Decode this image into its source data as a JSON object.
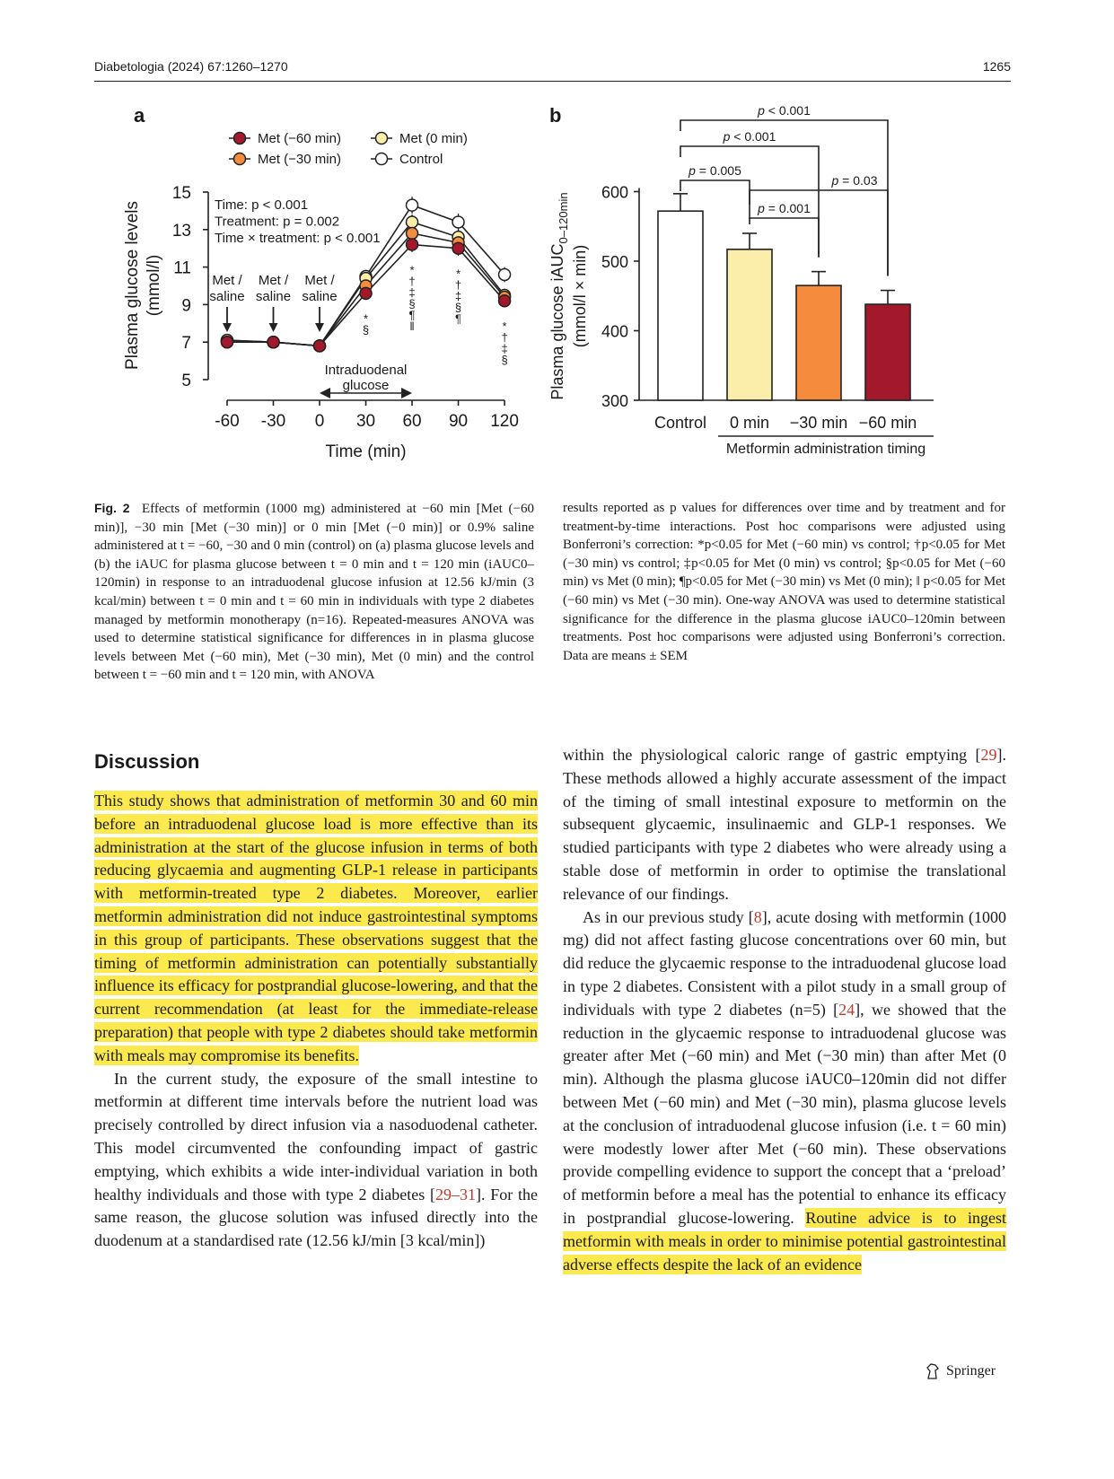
{
  "header": {
    "journal_ref": "Diabetologia (2024) 67:1260–1270",
    "page_number": "1265"
  },
  "figure": {
    "panel_a_label": "a",
    "panel_b_label": "b",
    "caption_label": "Fig. 2",
    "caption_left": "Effects of metformin (1000 mg) administered at −60 min [Met (−60 min)], −30 min [Met (−30 min)] or 0 min [Met (−0 min)] or 0.9% saline administered at t = −60, −30 and 0 min (control) on (a) plasma glucose levels and (b) the iAUC for plasma glucose between t = 0 min and t = 120 min (iAUC0–120min) in response to an intraduodenal glucose infusion at 12.56 kJ/min (3 kcal/min) between t = 0 min and t = 60 min in individuals with type 2 diabetes managed by metformin monotherapy (n=16). Repeated-measures ANOVA was used to determine statistical significance for differences in in plasma glucose levels between Met (−60 min), Met (−30 min), Met (0 min) and the control between t = −60 min and t = 120 min, with ANOVA",
    "caption_right": "results reported as p values for differences over time and by treatment and for treatment-by-time interactions. Post hoc comparisons were adjusted using Bonferroni’s correction: *p<0.05 for Met (−60 min) vs control; †p<0.05 for Met (−30 min) vs control; ‡p<0.05 for Met (0 min) vs control; §p<0.05 for Met (−60 min) vs Met (0 min); ¶p<0.05 for Met (−30 min) vs Met (0 min); ‖ p<0.05 for Met (−60 min) vs Met (−30 min). One-way ANOVA was used to determine statistical significance for the difference in the plasma glucose iAUC0–120min between treatments. Post hoc comparisons were adjusted using Bonferroni’s correction. Data are means ± SEM"
  },
  "chart_data": [
    {
      "type": "line",
      "panel": "a",
      "xlabel": "Time (min)",
      "ylabel": "Plasma glucose levels (mmol/l)",
      "x": [
        -60,
        -30,
        0,
        30,
        60,
        90,
        120
      ],
      "xticks": [
        "-60",
        "-30",
        "0",
        "30",
        "60",
        "90",
        "120"
      ],
      "yticks": [
        "5",
        "7",
        "9",
        "11",
        "13",
        "15"
      ],
      "ylim": [
        5,
        15
      ],
      "series": [
        {
          "name": "Met (−60 min)",
          "color": "#a3192b",
          "values": [
            7.0,
            7.0,
            6.8,
            9.6,
            12.2,
            12.0,
            9.2
          ],
          "sem": [
            0.25,
            0.2,
            0.2,
            0.35,
            0.4,
            0.4,
            0.35
          ]
        },
        {
          "name": "Met (−30 min)",
          "color": "#f58b3c",
          "values": [
            7.0,
            7.0,
            6.8,
            10.0,
            12.8,
            12.3,
            9.4
          ],
          "sem": [
            0.25,
            0.2,
            0.2,
            0.35,
            0.4,
            0.4,
            0.35
          ]
        },
        {
          "name": "Met (0 min)",
          "color": "#fbeeaa",
          "values": [
            7.1,
            7.0,
            6.8,
            10.4,
            13.4,
            12.6,
            9.5
          ],
          "sem": [
            0.25,
            0.2,
            0.2,
            0.35,
            0.4,
            0.4,
            0.35
          ]
        },
        {
          "name": "Control",
          "color": "#ffffff",
          "values": [
            7.1,
            7.0,
            6.8,
            10.5,
            14.3,
            13.4,
            10.6
          ],
          "sem": [
            0.25,
            0.2,
            0.2,
            0.35,
            0.45,
            0.45,
            0.4
          ]
        }
      ],
      "stats": [
        "Time: p < 0.001",
        "Treatment: p = 0.002",
        "Time × treatment: p < 0.001"
      ],
      "dosing_labels": [
        {
          "x": -60,
          "line1": "Met /",
          "line2": "saline"
        },
        {
          "x": -30,
          "line1": "Met /",
          "line2": "saline"
        },
        {
          "x": 0,
          "line1": "Met /",
          "line2": "saline"
        }
      ],
      "infusion_label": [
        "Intraduodenal",
        "glucose"
      ],
      "significance_marks": [
        {
          "x": 30,
          "marks": [
            "*",
            "§"
          ]
        },
        {
          "x": 60,
          "marks": [
            "*",
            "†",
            "‡",
            "§",
            "¶",
            "‖"
          ]
        },
        {
          "x": 90,
          "marks": [
            "*",
            "†",
            "‡",
            "§",
            "¶"
          ]
        },
        {
          "x": 120,
          "marks": [
            "*",
            "†",
            "‡",
            "§"
          ]
        }
      ]
    },
    {
      "type": "bar",
      "panel": "b",
      "ylabel": "Plasma glucose iAUC0–120min (mmol/l × min)",
      "categories": [
        "Control",
        "0 min",
        "−30 min",
        "−60 min"
      ],
      "values": [
        572,
        517,
        465,
        438
      ],
      "sem": [
        25,
        23,
        20,
        20
      ],
      "colors": [
        "#ffffff",
        "#fbeeaa",
        "#f58b3c",
        "#a3192b"
      ],
      "ylim": [
        300,
        600
      ],
      "yticks": [
        "300",
        "400",
        "500",
        "600"
      ],
      "group_label": "Metformin administration timing",
      "comparisons": [
        {
          "from": 0,
          "to": 3,
          "label": "p < 0.001"
        },
        {
          "from": 0,
          "to": 2,
          "label": "p < 0.001"
        },
        {
          "from": 0,
          "to": 1,
          "label": "p = 0.005"
        },
        {
          "from": 1,
          "to": 3,
          "label": "p = 0.03"
        },
        {
          "from": 1,
          "to": 2,
          "label": "p = 0.001"
        }
      ]
    }
  ],
  "discussion": {
    "heading": "Discussion",
    "left_p1": "This study shows that administration of metformin 30 and 60 min before an intraduodenal glucose load is more effective than its administration at the start of the glucose infusion in terms of both reducing glycaemia and augmenting GLP-1 release in participants with metformin-treated type 2 diabetes. Moreover, earlier metformin administration did not induce gastrointestinal symptoms in this group of participants. These observations suggest that the timing of metformin administration can potentially substantially influence its efficacy for postprandial glucose-lowering, and that the current recommendation (at least for the immediate-release preparation) that people with type 2 diabetes should take metformin with meals may compromise its benefits.",
    "left_p2_a": "In the current study, the exposure of the small intestine to metformin at different time intervals before the nutrient load was precisely controlled by direct infusion via a nasoduodenal catheter. This model circumvented the confounding impact of gastric emptying, which exhibits a wide inter-individual variation in both healthy individuals and those with type 2 diabetes [",
    "left_p2_ref": "29–31",
    "left_p2_b": "]. For the same reason, the glucose solution was infused directly into the duodenum at a standardised rate (12.56 kJ/min [3 kcal/min])",
    "right_p1_a": "within the physiological caloric range of gastric emptying [",
    "right_p1_ref": "29",
    "right_p1_b": "]. These methods allowed a highly accurate assessment of the impact of the timing of small intestinal exposure to metformin on the subsequent glycaemic, insulinaemic and GLP-1 responses. We studied participants with type 2 diabetes who were already using a stable dose of metformin in order to optimise the translational relevance of our findings.",
    "right_p2_a": "As in our previous study [",
    "right_p2_ref1": "8",
    "right_p2_b": "], acute dosing with metformin (1000 mg) did not affect fasting glucose concentrations over 60 min, but did reduce the glycaemic response to the intraduodenal glucose load in type 2 diabetes. Consistent with a pilot study in a small group of individuals with type 2 diabetes (n=5) [",
    "right_p2_ref2": "24",
    "right_p2_c": "], we showed that the reduction in the glycaemic response to intraduodenal glucose was greater after Met (−60 min) and Met (−30 min) than after Met (0 min). Although the plasma glucose iAUC0–120min did not differ between Met (−60 min) and Met (−30 min), plasma glucose levels at the conclusion of intraduodenal glucose infusion (i.e. t = 60 min) were modestly lower after Met (−60 min). These observations provide compelling evidence to support the concept that a ‘preload’ of metformin before a meal has the potential to enhance its efficacy in postprandial glucose-lowering. ",
    "right_p2_highlight": "Routine advice is to ingest metformin with meals in order to minimise potential gastrointestinal adverse effects despite the lack of an evidence"
  },
  "footer": {
    "publisher": "Springer"
  }
}
